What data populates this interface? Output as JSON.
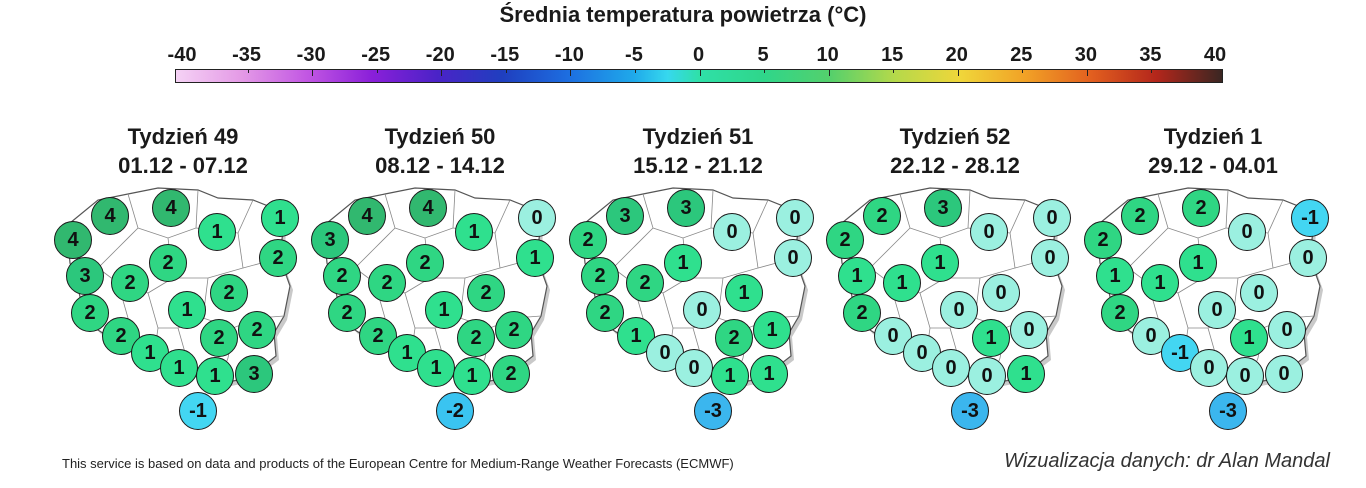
{
  "title": "Średnia temperatura powietrza (°C)",
  "scale": {
    "ticks": [
      "-40",
      "-35",
      "-30",
      "-25",
      "-20",
      "-15",
      "-10",
      "-5",
      "0",
      "5",
      "10",
      "15",
      "20",
      "25",
      "30",
      "35",
      "40"
    ],
    "min": -40,
    "max": 40
  },
  "panels": [
    {
      "week": "Tydzień 49",
      "dates": "01.12 - 07.12",
      "values": [
        4,
        4,
        4,
        1,
        1,
        2,
        2,
        3,
        2,
        2,
        2,
        1,
        2,
        2,
        2,
        1,
        1,
        1,
        3,
        -1
      ]
    },
    {
      "week": "Tydzień 50",
      "dates": "08.12 - 14.12",
      "values": [
        4,
        4,
        3,
        1,
        0,
        2,
        1,
        2,
        2,
        2,
        2,
        1,
        2,
        2,
        2,
        1,
        1,
        1,
        2,
        -2
      ]
    },
    {
      "week": "Tydzień 51",
      "dates": "15.12 - 21.12",
      "values": [
        3,
        3,
        2,
        0,
        0,
        1,
        0,
        2,
        2,
        1,
        2,
        0,
        1,
        1,
        2,
        0,
        0,
        1,
        1,
        -3
      ]
    },
    {
      "week": "Tydzień 52",
      "dates": "22.12 - 28.12",
      "values": [
        2,
        3,
        2,
        0,
        0,
        1,
        0,
        1,
        1,
        0,
        2,
        0,
        0,
        0,
        1,
        0,
        0,
        0,
        1,
        -3
      ]
    },
    {
      "week": "Tydzień 1",
      "dates": "29.12 - 04.01",
      "values": [
        2,
        2,
        2,
        0,
        -1,
        1,
        0,
        1,
        1,
        0,
        2,
        0,
        0,
        0,
        1,
        -1,
        0,
        0,
        0,
        -3
      ]
    }
  ],
  "value_colors": {
    "-3": "#3bb6ee",
    "-2": "#3ac4f1",
    "-1": "#43d6f2",
    "0": "#9bf0e0",
    "1": "#2fe08e",
    "2": "#2fd683",
    "3": "#2cc77c",
    "4": "#31b86f"
  },
  "footer": {
    "source": "This service is based on data and products of the European Centre for Medium-Range Weather Forecasts (ECMWF)",
    "credit": "Wizualizacja danych: dr Alan Mandal"
  }
}
